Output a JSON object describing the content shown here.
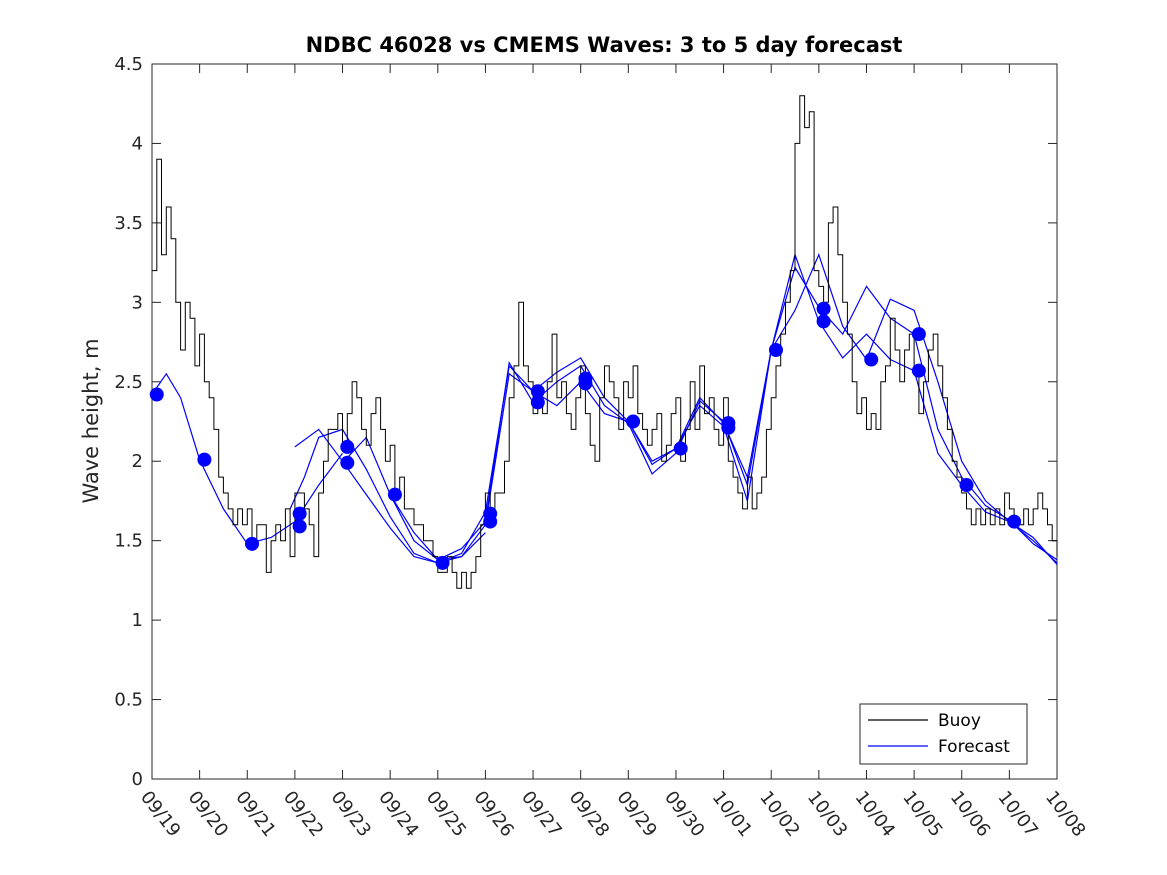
{
  "chart_data": {
    "type": "line",
    "title": "NDBC 46028 vs CMEMS Waves: 3 to 5 day forecast",
    "xlabel": "",
    "ylabel": "Wave height, m",
    "xlim": [
      "09/19",
      "10/08"
    ],
    "ylim": [
      0,
      4.5
    ],
    "x_ticks": [
      "09/19",
      "09/20",
      "09/21",
      "09/22",
      "09/23",
      "09/24",
      "09/25",
      "09/26",
      "09/27",
      "09/28",
      "09/29",
      "09/30",
      "10/01",
      "10/02",
      "10/03",
      "10/04",
      "10/05",
      "10/06",
      "10/07",
      "10/08"
    ],
    "y_ticks": [
      "0",
      "0.5",
      "1",
      "1.5",
      "2",
      "2.5",
      "3",
      "3.5",
      "4",
      "4.5"
    ],
    "grid": false,
    "legend_position": "bottom-right",
    "colors": {
      "buoy": "#000000",
      "forecast": "#0000ff"
    },
    "buoy": {
      "name": "Buoy",
      "x": [
        0,
        0.1,
        0.2,
        0.3,
        0.4,
        0.5,
        0.6,
        0.7,
        0.8,
        0.9,
        1.0,
        1.1,
        1.2,
        1.3,
        1.4,
        1.5,
        1.6,
        1.7,
        1.8,
        1.9,
        2.0,
        2.1,
        2.2,
        2.3,
        2.4,
        2.5,
        2.6,
        2.7,
        2.8,
        2.9,
        3.0,
        3.1,
        3.2,
        3.3,
        3.4,
        3.5,
        3.6,
        3.7,
        3.8,
        3.9,
        4.0,
        4.1,
        4.2,
        4.3,
        4.4,
        4.5,
        4.6,
        4.7,
        4.8,
        4.9,
        5.0,
        5.1,
        5.2,
        5.3,
        5.4,
        5.5,
        5.6,
        5.7,
        5.8,
        5.9,
        6.0,
        6.1,
        6.2,
        6.3,
        6.4,
        6.5,
        6.6,
        6.7,
        6.8,
        6.9,
        7.0,
        7.1,
        7.2,
        7.3,
        7.4,
        7.5,
        7.6,
        7.7,
        7.8,
        7.9,
        8.0,
        8.1,
        8.2,
        8.3,
        8.4,
        8.5,
        8.6,
        8.7,
        8.8,
        8.9,
        9.0,
        9.1,
        9.2,
        9.3,
        9.4,
        9.5,
        9.6,
        9.7,
        9.8,
        9.9,
        10.0,
        10.1,
        10.2,
        10.3,
        10.4,
        10.5,
        10.6,
        10.7,
        10.8,
        10.9,
        11.0,
        11.1,
        11.2,
        11.3,
        11.4,
        11.5,
        11.6,
        11.7,
        11.8,
        11.9,
        12.0,
        12.1,
        12.2,
        12.3,
        12.4,
        12.5,
        12.6,
        12.7,
        12.8,
        12.9,
        13.0,
        13.1,
        13.2,
        13.3,
        13.4,
        13.5,
        13.6,
        13.7,
        13.8,
        13.9,
        14.0,
        14.1,
        14.2,
        14.3,
        14.4,
        14.5,
        14.6,
        14.7,
        14.8,
        14.9,
        15.0,
        15.1,
        15.2,
        15.3,
        15.4,
        15.5,
        15.6,
        15.7,
        15.8,
        15.9,
        16.0,
        16.1,
        16.2,
        16.3,
        16.4,
        16.5,
        16.6,
        16.7,
        16.8,
        16.9,
        17.0,
        17.1,
        17.2,
        17.3,
        17.4,
        17.5,
        17.6,
        17.7,
        17.8,
        17.9,
        18.0,
        18.1,
        18.2,
        18.3,
        18.4,
        18.5,
        18.6,
        18.7,
        18.8,
        18.9,
        19.0
      ],
      "values": [
        3.2,
        3.9,
        3.3,
        3.6,
        3.4,
        3.0,
        2.7,
        3.0,
        2.9,
        2.6,
        2.8,
        2.5,
        2.4,
        2.2,
        1.9,
        1.8,
        1.7,
        1.6,
        1.7,
        1.6,
        1.7,
        1.5,
        1.6,
        1.6,
        1.3,
        1.5,
        1.6,
        1.5,
        1.7,
        1.4,
        1.8,
        1.8,
        1.7,
        1.6,
        1.4,
        1.8,
        2.0,
        2.2,
        2.2,
        2.3,
        2.1,
        2.3,
        2.5,
        2.4,
        2.2,
        2.1,
        2.3,
        2.4,
        2.2,
        2.0,
        2.1,
        1.8,
        1.9,
        1.7,
        1.7,
        1.6,
        1.6,
        1.5,
        1.5,
        1.4,
        1.3,
        1.3,
        1.4,
        1.3,
        1.2,
        1.3,
        1.2,
        1.3,
        1.4,
        1.6,
        1.8,
        1.7,
        1.8,
        1.8,
        2.0,
        2.4,
        2.6,
        3.0,
        2.6,
        2.5,
        2.3,
        2.4,
        2.3,
        2.5,
        2.8,
        2.4,
        2.5,
        2.3,
        2.2,
        2.4,
        2.6,
        2.3,
        2.1,
        2.0,
        2.4,
        2.6,
        2.5,
        2.4,
        2.2,
        2.5,
        2.4,
        2.6,
        2.3,
        2.2,
        2.1,
        2.2,
        2.3,
        2.0,
        2.1,
        2.3,
        2.4,
        2.0,
        2.2,
        2.5,
        2.2,
        2.6,
        2.3,
        2.4,
        2.2,
        2.1,
        2.4,
        2.0,
        1.9,
        1.8,
        1.7,
        1.9,
        1.7,
        1.8,
        1.9,
        2.2,
        2.4,
        2.6,
        2.8,
        3.0,
        3.2,
        4.0,
        4.3,
        4.1,
        4.2,
        3.2,
        3.1,
        3.0,
        3.5,
        3.6,
        3.3,
        3.0,
        2.8,
        2.5,
        2.3,
        2.4,
        2.2,
        2.3,
        2.2,
        2.5,
        2.6,
        2.9,
        2.7,
        2.5,
        2.7,
        2.8,
        2.6,
        2.3,
        2.5,
        2.7,
        2.8,
        2.6,
        2.4,
        2.2,
        2.0,
        1.9,
        1.8,
        1.7,
        1.6,
        1.7,
        1.6,
        1.7,
        1.6,
        1.7,
        1.6,
        1.8,
        1.7,
        1.6,
        1.6,
        1.7,
        1.6,
        1.7,
        1.8,
        1.7,
        1.6,
        1.5,
        1.4
      ]
    },
    "forecast": {
      "name": "Forecast",
      "lines": [
        {
          "x": [
            0,
            0.3,
            0.6,
            1.0,
            1.5,
            2.0,
            2.5,
            3.0,
            3.5,
            4.0
          ],
          "values": [
            2.42,
            2.55,
            2.4,
            2.01,
            1.7,
            1.48,
            1.52,
            1.62,
            1.85,
            2.05
          ]
        },
        {
          "x": [
            2.9,
            3.2,
            3.5,
            4.0,
            4.5,
            5.0,
            5.5,
            6.0,
            6.5,
            7.0
          ],
          "values": [
            1.7,
            1.9,
            2.15,
            2.2,
            1.95,
            1.65,
            1.42,
            1.36,
            1.4,
            1.55
          ]
        },
        {
          "x": [
            3.0,
            3.5,
            4.0,
            4.5,
            5.0,
            5.5,
            6.0,
            6.5,
            7.0,
            7.5,
            8.0,
            8.5,
            9.0,
            9.5,
            10.0,
            10.5,
            11.0,
            11.5,
            12.0,
            12.5,
            13.0
          ],
          "values": [
            2.09,
            2.2,
            2.0,
            1.79,
            1.58,
            1.4,
            1.36,
            1.42,
            1.68,
            2.6,
            2.44,
            2.35,
            2.5,
            2.3,
            2.25,
            2.0,
            2.08,
            2.35,
            2.22,
            1.75,
            2.7
          ]
        },
        {
          "x": [
            4.0,
            4.5,
            5.0,
            5.5,
            6.0,
            6.5,
            7.0,
            7.5,
            8.0,
            8.5,
            9.0,
            9.5,
            10.0,
            10.5,
            11.0,
            11.5,
            12.0,
            12.5,
            13.0,
            13.5,
            14.0,
            14.5,
            15.0,
            15.5,
            16.0,
            16.5,
            17.0,
            17.5,
            18.0,
            18.5,
            19.0
          ],
          "values": [
            1.99,
            2.15,
            1.79,
            1.5,
            1.38,
            1.45,
            1.62,
            2.62,
            2.37,
            2.5,
            2.6,
            2.35,
            2.24,
            1.92,
            2.05,
            2.38,
            2.25,
            1.85,
            2.7,
            3.3,
            2.88,
            2.65,
            2.8,
            2.64,
            2.57,
            2.05,
            1.85,
            1.68,
            1.62,
            1.52,
            1.35
          ]
        },
        {
          "x": [
            5.0,
            5.5,
            6.0,
            6.5,
            7.0,
            7.5,
            8.0,
            8.5,
            9.0,
            9.5,
            10.0,
            10.5,
            11.0,
            11.5,
            12.0,
            12.5,
            13.0,
            13.5,
            14.0,
            14.5,
            15.0,
            15.5,
            16.0,
            16.5,
            17.0,
            17.5,
            18.0,
            18.5,
            19.0
          ],
          "values": [
            1.79,
            1.55,
            1.38,
            1.4,
            1.6,
            2.55,
            2.44,
            2.56,
            2.65,
            2.4,
            2.25,
            1.98,
            2.08,
            2.4,
            2.24,
            1.9,
            2.7,
            3.22,
            2.97,
            2.8,
            3.1,
            2.9,
            2.8,
            2.2,
            1.9,
            1.72,
            1.63,
            1.48,
            1.38
          ]
        },
        {
          "x": [
            13.0,
            13.5,
            14.0,
            14.5,
            15.0,
            15.5,
            16.0,
            16.5,
            17.0,
            17.5,
            18.0,
            18.5,
            19.0
          ],
          "values": [
            2.7,
            2.95,
            3.3,
            2.85,
            2.64,
            3.02,
            2.95,
            2.5,
            2.0,
            1.75,
            1.62,
            1.5,
            1.36
          ]
        }
      ],
      "markers": {
        "x": [
          0.1,
          1.1,
          2.1,
          3.1,
          3.1,
          4.1,
          4.1,
          5.1,
          6.1,
          7.1,
          7.1,
          8.1,
          8.1,
          9.1,
          9.1,
          10.1,
          11.1,
          12.1,
          12.1,
          13.1,
          14.1,
          14.1,
          15.1,
          16.1,
          16.1,
          17.1,
          18.1
        ],
        "values": [
          2.42,
          2.01,
          1.48,
          1.67,
          1.59,
          2.09,
          1.99,
          1.79,
          1.36,
          1.67,
          1.62,
          2.44,
          2.37,
          2.52,
          2.49,
          2.25,
          2.08,
          2.24,
          2.21,
          2.7,
          2.96,
          2.88,
          2.64,
          2.8,
          2.57,
          1.85,
          1.62
        ]
      }
    },
    "legend": [
      "Buoy",
      "Forecast"
    ]
  }
}
